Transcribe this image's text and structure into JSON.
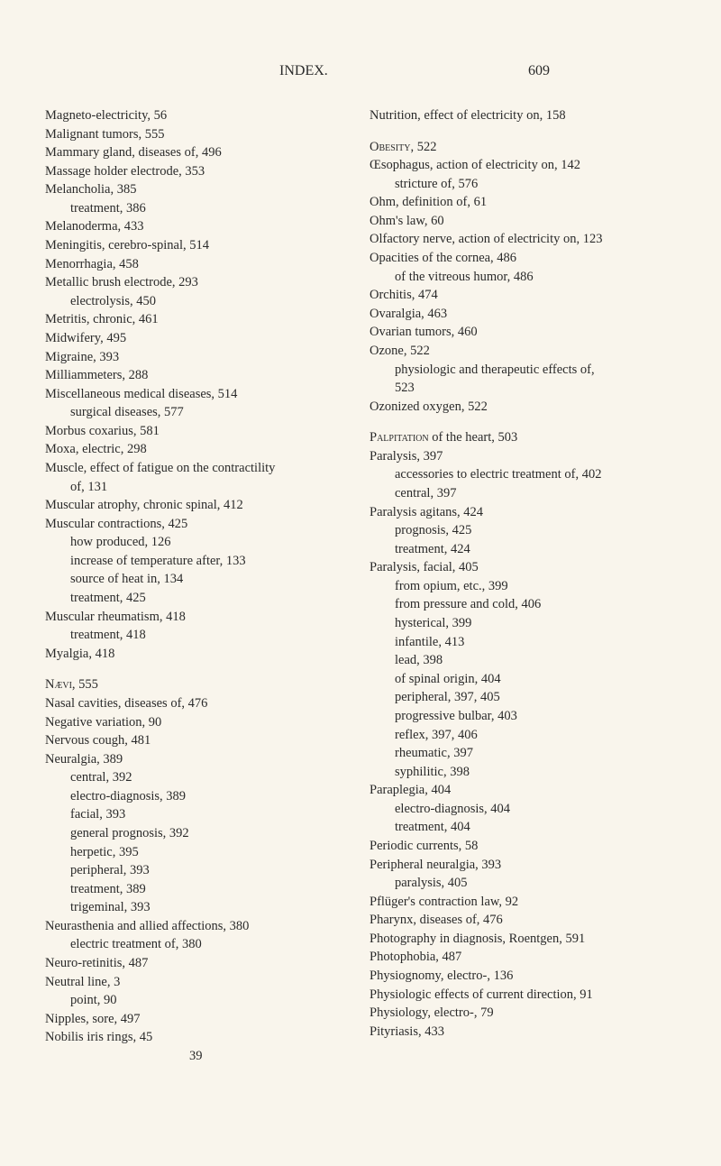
{
  "header": {
    "title": "INDEX.",
    "page": "609"
  },
  "left": [
    {
      "t": "Magneto-electricity, 56",
      "i": 0
    },
    {
      "t": "Malignant tumors, 555",
      "i": 0
    },
    {
      "t": "Mammary gland, diseases of, 496",
      "i": 0
    },
    {
      "t": "Massage holder electrode, 353",
      "i": 0
    },
    {
      "t": "Melancholia, 385",
      "i": 0
    },
    {
      "t": "treatment, 386",
      "i": 1
    },
    {
      "t": "Melanoderma, 433",
      "i": 0
    },
    {
      "t": "Meningitis, cerebro-spinal, 514",
      "i": 0
    },
    {
      "t": "Menorrhagia, 458",
      "i": 0
    },
    {
      "t": "Metallic brush electrode, 293",
      "i": 0
    },
    {
      "t": "electrolysis, 450",
      "i": 1
    },
    {
      "t": "Metritis, chronic, 461",
      "i": 0
    },
    {
      "t": "Midwifery, 495",
      "i": 0
    },
    {
      "t": "Migraine, 393",
      "i": 0
    },
    {
      "t": "Milliammeters, 288",
      "i": 0
    },
    {
      "t": "Miscellaneous medical diseases, 514",
      "i": 0
    },
    {
      "t": "surgical diseases, 577",
      "i": 1
    },
    {
      "t": "Morbus coxarius, 581",
      "i": 0
    },
    {
      "t": "Moxa, electric, 298",
      "i": 0
    },
    {
      "t": "Muscle, effect of fatigue on the contractility",
      "i": 0
    },
    {
      "t": "of, 131",
      "i": 1,
      "tight": true
    },
    {
      "t": "Muscular atrophy, chronic spinal, 412",
      "i": 0
    },
    {
      "t": "Muscular contractions, 425",
      "i": 0
    },
    {
      "t": "how produced, 126",
      "i": 1
    },
    {
      "t": "increase of temperature after, 133",
      "i": 1
    },
    {
      "t": "source of heat in, 134",
      "i": 1
    },
    {
      "t": "treatment, 425",
      "i": 1
    },
    {
      "t": "Muscular rheumatism, 418",
      "i": 0
    },
    {
      "t": "treatment, 418",
      "i": 1
    },
    {
      "t": "Myalgia, 418",
      "i": 0
    },
    {
      "t": "",
      "i": 0,
      "spacer": true
    },
    {
      "t": "Nævi, 555",
      "i": 0,
      "sc": "Nævi"
    },
    {
      "t": "Nasal cavities, diseases of, 476",
      "i": 0
    },
    {
      "t": "Negative variation, 90",
      "i": 0
    },
    {
      "t": "Nervous cough, 481",
      "i": 0
    },
    {
      "t": "Neuralgia, 389",
      "i": 0
    },
    {
      "t": "central, 392",
      "i": 1
    },
    {
      "t": "electro-diagnosis, 389",
      "i": 1
    },
    {
      "t": "facial, 393",
      "i": 1
    },
    {
      "t": "general prognosis, 392",
      "i": 1
    },
    {
      "t": "herpetic, 395",
      "i": 1
    },
    {
      "t": "peripheral, 393",
      "i": 1
    },
    {
      "t": "treatment, 389",
      "i": 1
    },
    {
      "t": "trigeminal, 393",
      "i": 1
    },
    {
      "t": "Neurasthenia and allied affections, 380",
      "i": 0
    },
    {
      "t": "electric treatment of, 380",
      "i": 1
    },
    {
      "t": "Neuro-retinitis, 487",
      "i": 0
    },
    {
      "t": "Neutral line, 3",
      "i": 0
    },
    {
      "t": "point, 90",
      "i": 1
    },
    {
      "t": "Nipples, sore, 497",
      "i": 0
    },
    {
      "t": "Nobilis iris rings, 45",
      "i": 0
    }
  ],
  "footer_num": "39",
  "right": [
    {
      "t": "Nutrition, effect of electricity on, 158",
      "i": 0
    },
    {
      "t": "",
      "i": 0,
      "spacer": true
    },
    {
      "t": "Obesity, 522",
      "i": 0,
      "sc": "Obesity"
    },
    {
      "t": "Œsophagus, action of electricity on, 142",
      "i": 0
    },
    {
      "t": "stricture of, 576",
      "i": 1
    },
    {
      "t": "Ohm, definition of, 61",
      "i": 0
    },
    {
      "t": "Ohm's law, 60",
      "i": 0
    },
    {
      "t": "Olfactory nerve, action of electricity on, 123",
      "i": 0
    },
    {
      "t": "Opacities of the cornea, 486",
      "i": 0
    },
    {
      "t": "of the vitreous humor, 486",
      "i": 1
    },
    {
      "t": "Orchitis, 474",
      "i": 0
    },
    {
      "t": "Ovaralgia, 463",
      "i": 0
    },
    {
      "t": "Ovarian tumors, 460",
      "i": 0
    },
    {
      "t": "Ozone, 522",
      "i": 0
    },
    {
      "t": "physiologic and therapeutic effects of,",
      "i": 1
    },
    {
      "t": "523",
      "i": 2,
      "tight": true
    },
    {
      "t": "Ozonized oxygen, 522",
      "i": 0
    },
    {
      "t": "",
      "i": 0,
      "spacer": true
    },
    {
      "t": "Palpitation of the heart, 503",
      "i": 0,
      "sc": "Palpitation"
    },
    {
      "t": "Paralysis, 397",
      "i": 0
    },
    {
      "t": "accessories to electric treatment of, 402",
      "i": 1
    },
    {
      "t": "central, 397",
      "i": 1
    },
    {
      "t": "Paralysis agitans, 424",
      "i": 0
    },
    {
      "t": "prognosis, 425",
      "i": 1
    },
    {
      "t": "treatment, 424",
      "i": 1
    },
    {
      "t": "Paralysis, facial, 405",
      "i": 0
    },
    {
      "t": "from opium, etc., 399",
      "i": 1
    },
    {
      "t": "from pressure and cold, 406",
      "i": 1
    },
    {
      "t": "hysterical, 399",
      "i": 1
    },
    {
      "t": "infantile, 413",
      "i": 1
    },
    {
      "t": "lead, 398",
      "i": 1
    },
    {
      "t": "of spinal origin, 404",
      "i": 1
    },
    {
      "t": "peripheral, 397, 405",
      "i": 1
    },
    {
      "t": "progressive bulbar, 403",
      "i": 1
    },
    {
      "t": "reflex, 397, 406",
      "i": 1
    },
    {
      "t": "rheumatic, 397",
      "i": 1
    },
    {
      "t": "syphilitic, 398",
      "i": 1
    },
    {
      "t": "Paraplegia, 404",
      "i": 0
    },
    {
      "t": "electro-diagnosis, 404",
      "i": 1
    },
    {
      "t": "treatment, 404",
      "i": 1
    },
    {
      "t": "Periodic currents, 58",
      "i": 0
    },
    {
      "t": "Peripheral neuralgia, 393",
      "i": 0
    },
    {
      "t": "paralysis, 405",
      "i": 1
    },
    {
      "t": "Pflüger's contraction law, 92",
      "i": 0
    },
    {
      "t": "Pharynx, diseases of, 476",
      "i": 0
    },
    {
      "t": "Photography in diagnosis, Roentgen, 591",
      "i": 0
    },
    {
      "t": "Photophobia, 487",
      "i": 0
    },
    {
      "t": "Physiognomy, electro-, 136",
      "i": 0
    },
    {
      "t": "Physiologic effects of current direction, 91",
      "i": 0
    },
    {
      "t": "Physiology, electro-, 79",
      "i": 0
    },
    {
      "t": "Pityriasis, 433",
      "i": 0
    }
  ]
}
